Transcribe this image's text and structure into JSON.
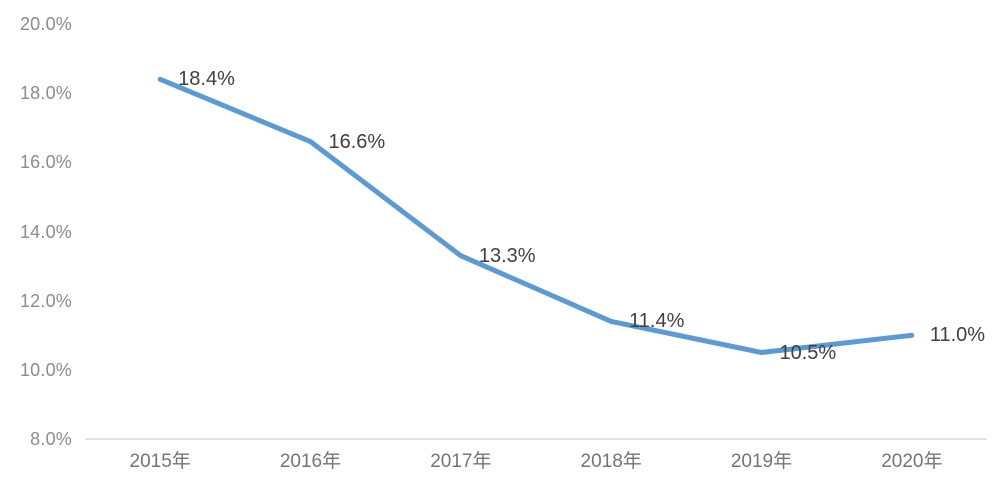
{
  "chart_data": {
    "type": "line",
    "categories": [
      "2015年",
      "2016年",
      "2017年",
      "2018年",
      "2019年",
      "2020年"
    ],
    "series": [
      {
        "name": "percentage",
        "values": [
          18.4,
          16.6,
          13.3,
          11.4,
          10.5,
          11.0
        ],
        "point_labels": [
          "18.4%",
          "16.6%",
          "13.3%",
          "11.4%",
          "10.5%",
          "11.0%"
        ]
      }
    ],
    "y_ticks": [
      {
        "value": 20,
        "label": "20.0%"
      },
      {
        "value": 18,
        "label": "18.0%"
      },
      {
        "value": 16,
        "label": "16.0%"
      },
      {
        "value": 14,
        "label": "14.0%"
      },
      {
        "value": 12,
        "label": "12.0%"
      },
      {
        "value": 10,
        "label": "10.0%"
      },
      {
        "value": 8,
        "label": "8.0%"
      }
    ],
    "ylim": [
      8,
      20
    ],
    "grid": false,
    "legend": false,
    "colors": {
      "line": "#5B9BD5",
      "axis_line": "#d9d9d9",
      "tick_text": "#8c8c8c",
      "category_text": "#757575",
      "data_label_text": "#404040",
      "background": "#ffffff"
    }
  }
}
